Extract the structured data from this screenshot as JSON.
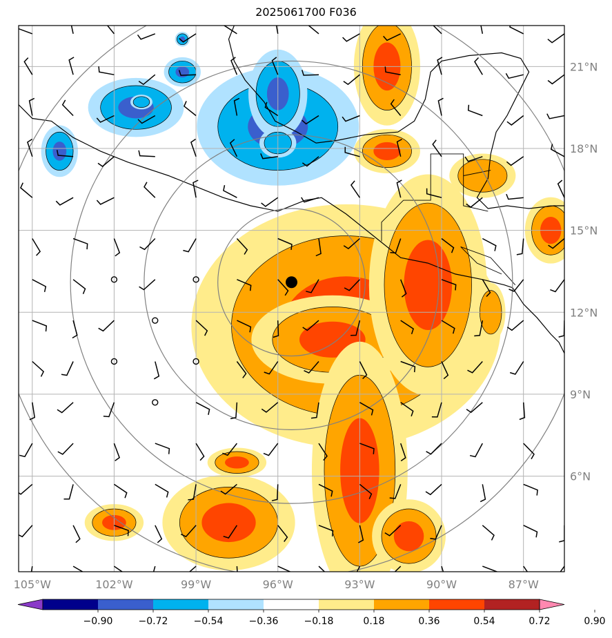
{
  "title": "2025061700 F036",
  "map": {
    "lon_range": [
      -105.5,
      -85.5
    ],
    "lat_range": [
      2.5,
      22.5
    ],
    "lon_ticks": [
      {
        "value": -105,
        "label": "105°W"
      },
      {
        "value": -102,
        "label": "102°W"
      },
      {
        "value": -99,
        "label": "99°W"
      },
      {
        "value": -96,
        "label": "96°W"
      },
      {
        "value": -93,
        "label": "93°W"
      },
      {
        "value": -90,
        "label": "90°W"
      },
      {
        "value": -87,
        "label": "87°W"
      }
    ],
    "lat_ticks": [
      {
        "value": 21,
        "label": "21°N"
      },
      {
        "value": 18,
        "label": "18°N"
      },
      {
        "value": 15,
        "label": "15°N"
      },
      {
        "value": 12,
        "label": "12°N"
      },
      {
        "value": 9,
        "label": "9°N"
      },
      {
        "value": 6,
        "label": "6°N"
      }
    ],
    "storm_center": {
      "lon": -95.5,
      "lat": 13.1
    },
    "range_rings_deg": [
      2.7,
      5.4,
      8.1,
      10.8
    ],
    "gridlines": true,
    "tick_color": "#808080"
  },
  "colorbar": {
    "ticks": [
      "−0.90",
      "−0.72",
      "−0.54",
      "−0.36",
      "−0.18",
      "0.18",
      "0.36",
      "0.54",
      "0.72",
      "0.90"
    ],
    "colors": [
      "#8a3ac8",
      "#00008b",
      "#3a5fcd",
      "#00b2ee",
      "#b0e2ff",
      "#ffffff",
      "#ffec8b",
      "#ffa500",
      "#ff4500",
      "#b22222",
      "#ff88b0"
    ],
    "extend": "both"
  },
  "fields": {
    "positive": [
      {
        "lon": -93.5,
        "lat": 11.5,
        "rx": 4.2,
        "ry": 3.3,
        "level": 3
      },
      {
        "lon": -94.0,
        "lat": 11.0,
        "rx": 2.2,
        "ry": 1.2,
        "level": 4
      },
      {
        "lon": -90.5,
        "lat": 13.0,
        "rx": 1.6,
        "ry": 3.0,
        "level": 3
      },
      {
        "lon": -93.0,
        "lat": 6.2,
        "rx": 1.3,
        "ry": 3.5,
        "level": 3
      },
      {
        "lon": -97.8,
        "lat": 4.3,
        "rx": 1.8,
        "ry": 1.3,
        "level": 3
      },
      {
        "lon": -91.2,
        "lat": 3.8,
        "rx": 1.0,
        "ry": 1.0,
        "level": 3
      },
      {
        "lon": -92.0,
        "lat": 21.0,
        "rx": 0.9,
        "ry": 1.6,
        "level": 3
      },
      {
        "lon": -92.0,
        "lat": 17.9,
        "rx": 0.9,
        "ry": 0.6,
        "level": 3
      },
      {
        "lon": -86.0,
        "lat": 15.0,
        "rx": 0.7,
        "ry": 0.9,
        "level": 3
      },
      {
        "lon": -88.5,
        "lat": 17.0,
        "rx": 0.9,
        "ry": 0.6,
        "level": 2
      },
      {
        "lon": -102.0,
        "lat": 4.3,
        "rx": 0.8,
        "ry": 0.5,
        "level": 3
      },
      {
        "lon": -97.5,
        "lat": 6.5,
        "rx": 0.8,
        "ry": 0.4,
        "level": 3
      },
      {
        "lon": -94.2,
        "lat": 18.4,
        "rx": 0.5,
        "ry": 0.3,
        "level": 2
      },
      {
        "lon": -88.2,
        "lat": 12.0,
        "rx": 0.4,
        "ry": 0.8,
        "level": 2
      }
    ],
    "negative": [
      {
        "lon": -96.0,
        "lat": 18.8,
        "rx": 2.2,
        "ry": 1.6,
        "level": 3
      },
      {
        "lon": -96.0,
        "lat": 20.0,
        "rx": 0.8,
        "ry": 1.2,
        "level": 3
      },
      {
        "lon": -96.0,
        "lat": 18.2,
        "rx": 0.5,
        "ry": 0.4,
        "level": 2
      },
      {
        "lon": -101.2,
        "lat": 19.5,
        "rx": 1.3,
        "ry": 0.8,
        "level": 3
      },
      {
        "lon": -101.0,
        "lat": 19.7,
        "rx": 0.3,
        "ry": 0.2,
        "level": 2
      },
      {
        "lon": -99.5,
        "lat": 20.8,
        "rx": 0.5,
        "ry": 0.4,
        "level": 3
      },
      {
        "lon": -104.0,
        "lat": 17.9,
        "rx": 0.5,
        "ry": 0.7,
        "level": 4
      },
      {
        "lon": -99.5,
        "lat": 22.0,
        "rx": 0.2,
        "ry": 0.2,
        "level": 4
      }
    ]
  }
}
